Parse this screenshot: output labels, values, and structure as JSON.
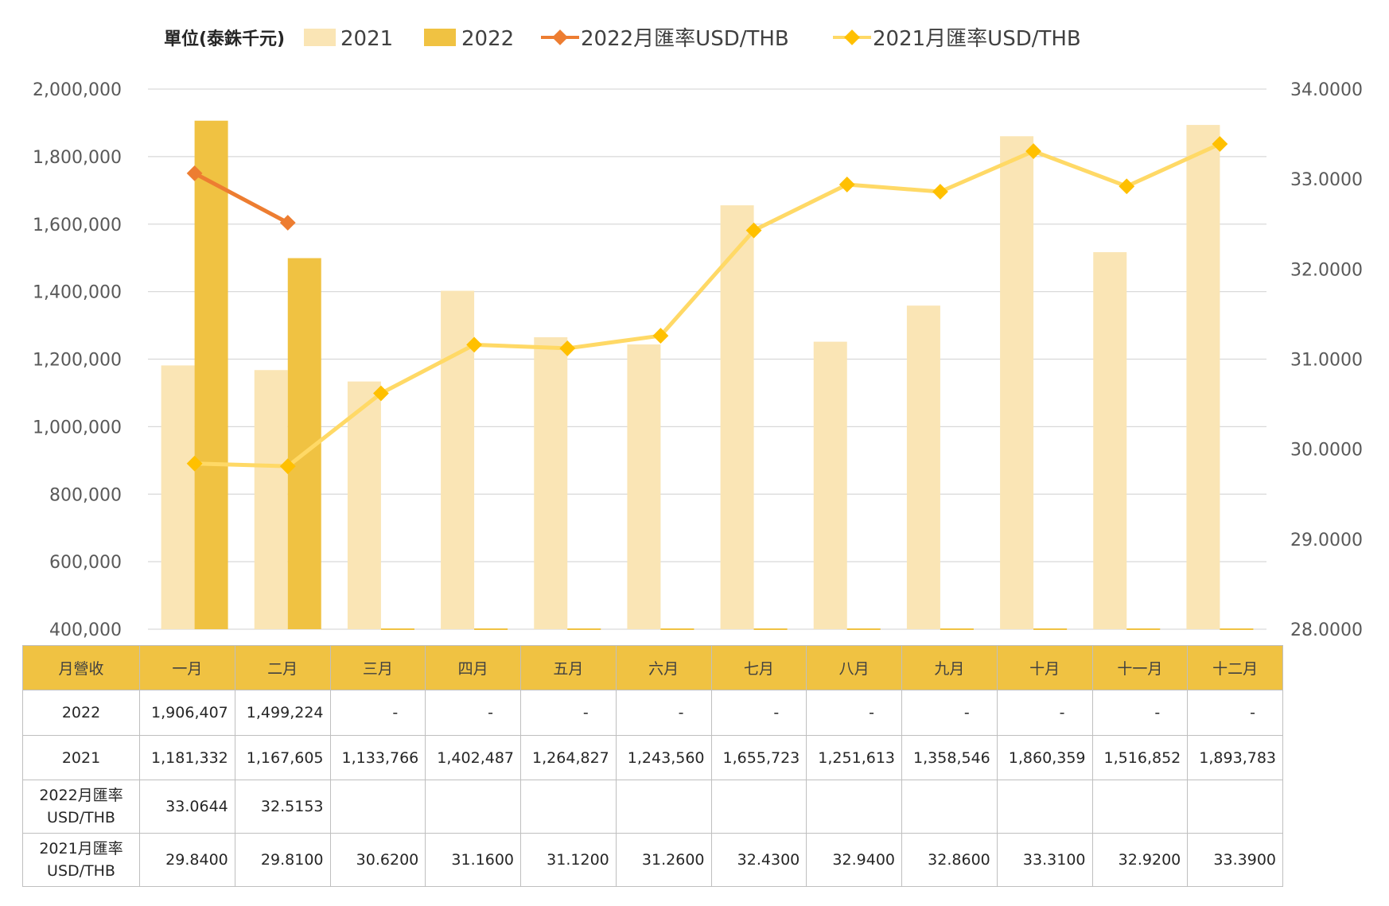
{
  "chart_data": {
    "type": "bar",
    "unit_label": "單位(泰銖千元)",
    "categories": [
      "一月",
      "二月",
      "三月",
      "四月",
      "五月",
      "六月",
      "七月",
      "八月",
      "九月",
      "十月",
      "十一月",
      "十二月"
    ],
    "series": [
      {
        "name": "2021",
        "kind": "bar",
        "axis": "left",
        "color": "#fae5b5",
        "values": [
          1181332,
          1167605,
          1133766,
          1402487,
          1264827,
          1243560,
          1655723,
          1251613,
          1358546,
          1860359,
          1516852,
          1893783
        ],
        "display": [
          "1,181,332",
          "1,167,605",
          "1,133,766",
          "1,402,487",
          "1,264,827",
          "1,243,560",
          "1,655,723",
          "1,251,613",
          "1,358,546",
          "1,860,359",
          "1,516,852",
          "1,893,783"
        ]
      },
      {
        "name": "2022",
        "kind": "bar",
        "axis": "left",
        "color": "#f0c242",
        "values": [
          1906407,
          1499224,
          null,
          null,
          null,
          null,
          null,
          null,
          null,
          null,
          null,
          null
        ],
        "display": [
          "1,906,407",
          "1,499,224",
          "-",
          "-",
          "-",
          "-",
          "-",
          "-",
          "-",
          "-",
          "-",
          "-"
        ]
      },
      {
        "name": "2022月匯率USD/THB",
        "kind": "line",
        "axis": "right",
        "color": "#ed7d31",
        "values": [
          33.0644,
          32.5153,
          null,
          null,
          null,
          null,
          null,
          null,
          null,
          null,
          null,
          null
        ],
        "display": [
          "33.0644",
          "32.5153",
          "",
          "",
          "",
          "",
          "",
          "",
          "",
          "",
          "",
          ""
        ]
      },
      {
        "name": "2021月匯率USD/THB",
        "kind": "line",
        "axis": "right",
        "color": "#ffd966",
        "marker_color": "#ffc000",
        "values": [
          29.84,
          29.81,
          30.62,
          31.16,
          31.12,
          31.26,
          32.43,
          32.94,
          32.86,
          33.31,
          32.92,
          33.39
        ],
        "display": [
          "29.8400",
          "29.8100",
          "30.6200",
          "31.1600",
          "31.1200",
          "31.2600",
          "32.4300",
          "32.9400",
          "32.8600",
          "33.3100",
          "32.9200",
          "33.3900"
        ]
      }
    ],
    "y_left": {
      "min": 400000,
      "max": 2000000,
      "step": 200000,
      "tick_labels": [
        "400,000",
        "600,000",
        "800,000",
        "1,000,000",
        "1,200,000",
        "1,400,000",
        "1,600,000",
        "1,800,000",
        "2,000,000"
      ]
    },
    "y_right": {
      "min": 28,
      "max": 34,
      "step": 1,
      "tick_labels": [
        "28.0000",
        "29.0000",
        "30.0000",
        "31.0000",
        "32.0000",
        "33.0000",
        "34.0000"
      ]
    },
    "grid": true,
    "legend_position": "top"
  },
  "table": {
    "header_label": "月營收",
    "row_labels": [
      {
        "line1": "2022",
        "line2": ""
      },
      {
        "line1": "2021",
        "line2": ""
      },
      {
        "line1": "2022月匯率",
        "line2": "USD/THB"
      },
      {
        "line1": "2021月匯率",
        "line2": "USD/THB"
      }
    ]
  }
}
